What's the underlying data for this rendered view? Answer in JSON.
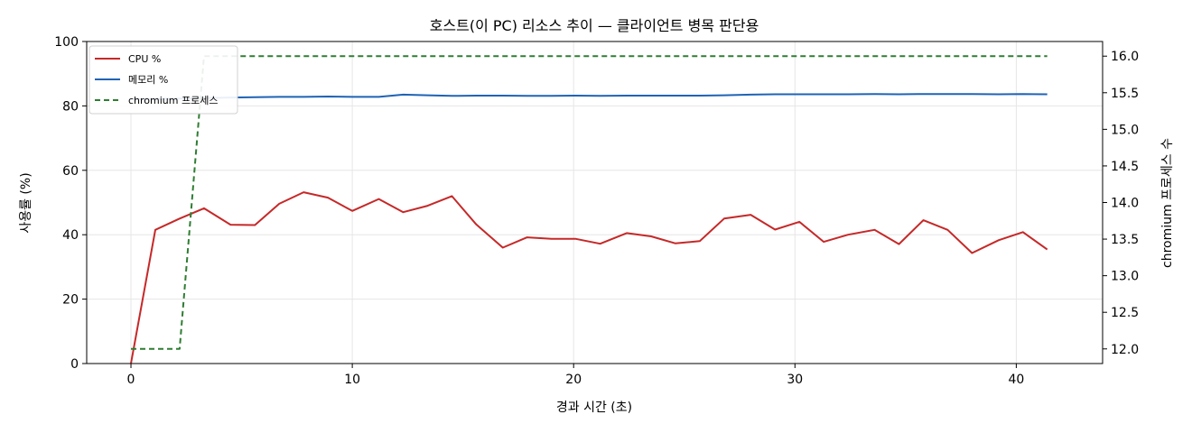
{
  "chart_data": {
    "type": "line",
    "title": "호스트(이 PC) 리소스 추이 — 클라이언트 병목 판단용",
    "xlabel": "경과 시간 (초)",
    "ylabel_left": "사용률 (%)",
    "ylabel_right": "chromium 프로세스 수",
    "xlim": [
      -2,
      43.9
    ],
    "ylim_left": [
      0,
      100
    ],
    "ylim_right": [
      11.8,
      16.2
    ],
    "x_ticks": [
      0,
      10,
      20,
      30,
      40
    ],
    "y_ticks_left": [
      0,
      20,
      40,
      60,
      80,
      100
    ],
    "y_ticks_right": [
      "12.0",
      "12.5",
      "13.0",
      "13.5",
      "14.0",
      "14.5",
      "15.0",
      "15.5",
      "16.0"
    ],
    "grid": true,
    "legend_position": "top-left",
    "series": [
      {
        "name": "CPU %",
        "axis": "left",
        "color": "#c62828",
        "dashed": false,
        "x": [
          0,
          1.1,
          2.2,
          3.3,
          4.5,
          5.6,
          6.7,
          7.8,
          8.9,
          10.0,
          11.2,
          12.3,
          13.4,
          14.5,
          15.6,
          16.8,
          17.9,
          19.0,
          20.1,
          21.2,
          22.4,
          23.5,
          24.6,
          25.7,
          26.8,
          28.0,
          29.1,
          30.2,
          31.3,
          32.4,
          33.6,
          34.7,
          35.8,
          36.9,
          38.0,
          39.2,
          40.3,
          41.4
        ],
        "y": [
          0,
          41.5,
          45.0,
          48.2,
          43.1,
          43.0,
          49.6,
          53.2,
          51.5,
          47.4,
          51.1,
          47.0,
          49.0,
          52.0,
          43.2,
          36.0,
          39.2,
          38.7,
          38.7,
          37.2,
          40.5,
          39.5,
          37.3,
          38.0,
          45.0,
          46.2,
          41.6,
          44.0,
          37.8,
          40.0,
          41.5,
          37.1,
          44.5,
          41.5,
          34.3,
          38.3,
          40.8,
          35.4
        ]
      },
      {
        "name": "메모리 %",
        "axis": "left",
        "color": "#1f63b5",
        "dashed": false,
        "x": [
          0,
          1.1,
          2.2,
          3.3,
          4.5,
          5.6,
          6.7,
          7.8,
          8.9,
          10.0,
          11.2,
          12.3,
          13.4,
          14.5,
          15.6,
          16.8,
          17.9,
          19.0,
          20.1,
          21.2,
          22.4,
          23.5,
          24.6,
          25.7,
          26.8,
          28.0,
          29.1,
          30.2,
          31.3,
          32.4,
          33.6,
          34.7,
          35.8,
          36.9,
          38.0,
          39.2,
          40.3,
          41.4
        ],
        "y": [
          82.1,
          82.2,
          82.3,
          82.4,
          82.6,
          82.7,
          82.8,
          82.8,
          82.9,
          82.8,
          82.8,
          83.5,
          83.3,
          83.1,
          83.2,
          83.2,
          83.1,
          83.1,
          83.2,
          83.1,
          83.2,
          83.2,
          83.2,
          83.2,
          83.3,
          83.5,
          83.6,
          83.6,
          83.6,
          83.6,
          83.7,
          83.6,
          83.7,
          83.7,
          83.7,
          83.6,
          83.7,
          83.6
        ]
      },
      {
        "name": "chromium 프로세스",
        "axis": "right",
        "color": "#2e7d32",
        "dashed": true,
        "x": [
          0,
          1.1,
          2.2,
          3.3,
          41.4
        ],
        "y": [
          12,
          12,
          12,
          16,
          16
        ]
      }
    ]
  }
}
